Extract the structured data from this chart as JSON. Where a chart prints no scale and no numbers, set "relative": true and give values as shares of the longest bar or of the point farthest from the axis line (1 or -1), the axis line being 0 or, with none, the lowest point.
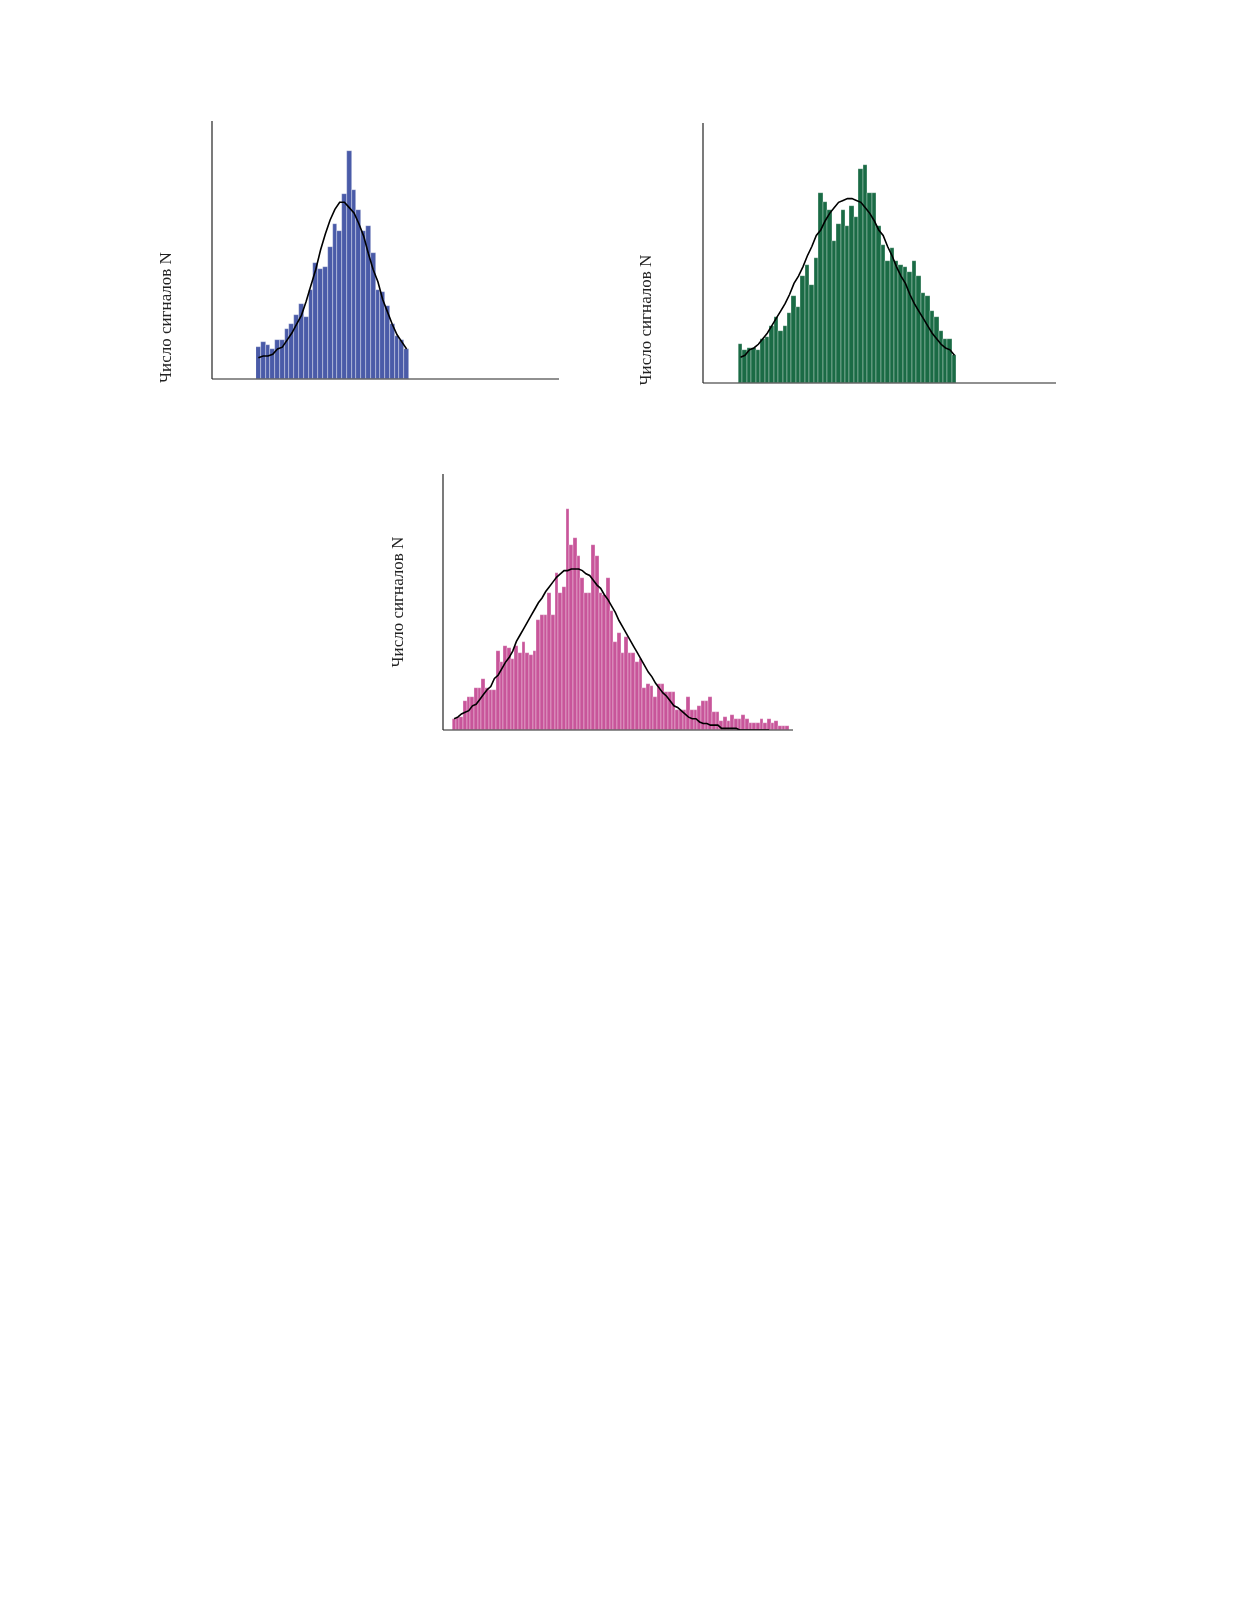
{
  "chart_data": [
    {
      "type": "bar",
      "relative": true,
      "ylabel": "Число сигналов N",
      "categories": [
        null,
        null,
        null,
        null,
        null,
        null,
        null,
        null,
        null,
        null,
        null,
        null,
        null,
        null,
        null,
        null,
        null,
        null,
        null,
        null,
        null,
        null,
        null,
        null,
        null,
        null,
        null,
        null,
        null,
        null,
        null,
        null
      ],
      "series": [
        {
          "color": "#4a5ba8",
          "values": [
            0.14,
            0.16,
            0.15,
            0.13,
            0.17,
            0.17,
            0.22,
            0.24,
            0.28,
            0.33,
            0.27,
            0.39,
            0.51,
            0.48,
            0.49,
            0.58,
            0.68,
            0.65,
            0.81,
            1,
            0.83,
            0.74,
            0.65,
            0.67,
            0.55,
            0.39,
            0.38,
            0.32,
            0.24,
            0.19,
            0.17,
            0.13
          ]
        }
      ]
    },
    {
      "type": "line",
      "relative": true,
      "categories": [
        null,
        null,
        null,
        null,
        null,
        null,
        null,
        null,
        null,
        null,
        null,
        null,
        null,
        null,
        null,
        null,
        null,
        null,
        null,
        null,
        null,
        null,
        null,
        null,
        null,
        null,
        null,
        null,
        null,
        null,
        null,
        null
      ],
      "series": [
        {
          "color": "#000000",
          "values": [
            0.12,
            0.13,
            0.13,
            0.14,
            0.17,
            0.18,
            0.22,
            0.26,
            0.31,
            0.36,
            0.44,
            0.53,
            0.62,
            0.73,
            0.82,
            0.9,
            0.96,
            1,
            1,
            0.97,
            0.94,
            0.88,
            0.81,
            0.71,
            0.62,
            0.55,
            0.45,
            0.38,
            0.31,
            0.25,
            0.21,
            0.17
          ]
        }
      ]
    },
    {
      "type": "bar",
      "relative": true,
      "ylabel": "Число сигналов N",
      "categories": [
        null,
        null,
        null,
        null,
        null,
        null,
        null,
        null,
        null,
        null,
        null,
        null,
        null,
        null,
        null,
        null,
        null,
        null,
        null,
        null,
        null,
        null,
        null,
        null,
        null,
        null,
        null,
        null,
        null,
        null,
        null,
        null,
        null,
        null,
        null,
        null,
        null,
        null,
        null,
        null,
        null,
        null,
        null,
        null,
        null,
        null,
        null,
        null,
        null
      ],
      "series": [
        {
          "color": "#1a6b45",
          "values": [
            0.18,
            0.15,
            0.16,
            0.16,
            0.15,
            0.2,
            0.21,
            0.26,
            0.3,
            0.24,
            0.26,
            0.32,
            0.4,
            0.35,
            0.49,
            0.54,
            0.45,
            0.57,
            0.87,
            0.83,
            0.79,
            0.65,
            0.73,
            0.79,
            0.72,
            0.81,
            0.76,
            0.98,
            1,
            0.87,
            0.87,
            0.72,
            0.63,
            0.56,
            0.62,
            0.56,
            0.54,
            0.53,
            0.51,
            0.56,
            0.49,
            0.41,
            0.4,
            0.33,
            0.3,
            0.24,
            0.2,
            0.2,
            0.13
          ]
        }
      ]
    },
    {
      "type": "line",
      "relative": true,
      "categories": [
        null,
        null,
        null,
        null,
        null,
        null,
        null,
        null,
        null,
        null,
        null,
        null,
        null,
        null,
        null,
        null,
        null,
        null,
        null,
        null,
        null,
        null,
        null,
        null,
        null,
        null,
        null,
        null,
        null,
        null,
        null,
        null,
        null,
        null,
        null,
        null,
        null,
        null,
        null,
        null,
        null,
        null,
        null,
        null,
        null,
        null,
        null,
        null,
        null
      ],
      "series": [
        {
          "color": "#000000",
          "values": [
            0.14,
            0.15,
            0.18,
            0.19,
            0.21,
            0.24,
            0.27,
            0.31,
            0.35,
            0.39,
            0.43,
            0.48,
            0.54,
            0.58,
            0.63,
            0.69,
            0.74,
            0.8,
            0.83,
            0.88,
            0.92,
            0.95,
            0.98,
            0.99,
            1,
            1,
            0.99,
            0.98,
            0.95,
            0.92,
            0.88,
            0.83,
            0.8,
            0.74,
            0.69,
            0.63,
            0.58,
            0.54,
            0.48,
            0.43,
            0.39,
            0.35,
            0.31,
            0.27,
            0.24,
            0.21,
            0.19,
            0.18,
            0.15
          ]
        }
      ]
    },
    {
      "type": "bar",
      "relative": true,
      "ylabel": "Число сигналов N",
      "categories": [
        null,
        null,
        null,
        null,
        null,
        null,
        null,
        null,
        null,
        null,
        null,
        null,
        null,
        null,
        null,
        null,
        null,
        null,
        null,
        null,
        null,
        null,
        null,
        null,
        null,
        null,
        null,
        null,
        null,
        null,
        null,
        null,
        null,
        null,
        null,
        null,
        null,
        null,
        null,
        null,
        null,
        null,
        null,
        null,
        null,
        null,
        null,
        null,
        null,
        null,
        null,
        null,
        null,
        null,
        null,
        null,
        null,
        null,
        null,
        null,
        null,
        null,
        null,
        null,
        null,
        null,
        null,
        null,
        null,
        null,
        null,
        null,
        null,
        null,
        null,
        null,
        null,
        null,
        null,
        null,
        null,
        null,
        null,
        null,
        null,
        null,
        null,
        null,
        null,
        null,
        null,
        null
      ],
      "series": [
        {
          "color": "#c8559a",
          "values": [
            0.05,
            0.06,
            0.06,
            0.13,
            0.15,
            0.15,
            0.19,
            0.19,
            0.23,
            0.19,
            0.18,
            0.18,
            0.36,
            0.31,
            0.38,
            0.37,
            0.32,
            0.38,
            0.35,
            0.4,
            0.35,
            0.34,
            0.36,
            0.5,
            0.52,
            0.52,
            0.62,
            0.52,
            0.71,
            0.62,
            0.65,
            1,
            0.84,
            0.87,
            0.79,
            0.69,
            0.62,
            0.62,
            0.84,
            0.79,
            0.62,
            0.61,
            0.69,
            0.54,
            0.4,
            0.44,
            0.35,
            0.42,
            0.35,
            0.35,
            0.31,
            0.32,
            0.19,
            0.21,
            0.2,
            0.15,
            0.21,
            0.21,
            0.17,
            0.17,
            0.17,
            0.09,
            0.09,
            0.09,
            0.15,
            0.09,
            0.09,
            0.11,
            0.13,
            0.13,
            0.15,
            0.08,
            0.08,
            0.04,
            0.06,
            0.04,
            0.07,
            0.05,
            0.05,
            0.07,
            0.05,
            0.03,
            0.03,
            0.03,
            0.05,
            0.03,
            0.05,
            0.03,
            0.04,
            0.02,
            0.02,
            0.02
          ]
        }
      ]
    },
    {
      "type": "line",
      "relative": true,
      "categories": [
        null,
        null,
        null,
        null,
        null,
        null,
        null,
        null,
        null,
        null,
        null,
        null,
        null,
        null,
        null,
        null,
        null,
        null,
        null,
        null,
        null,
        null,
        null,
        null,
        null,
        null,
        null,
        null,
        null,
        null,
        null,
        null,
        null,
        null,
        null,
        null,
        null,
        null,
        null,
        null,
        null,
        null,
        null,
        null,
        null,
        null,
        null,
        null,
        null,
        null,
        null,
        null,
        null,
        null,
        null,
        null,
        null,
        null,
        null,
        null,
        null,
        null,
        null,
        null,
        null,
        null,
        null,
        null,
        null,
        null,
        null,
        null,
        null,
        null,
        null,
        null,
        null,
        null,
        null,
        null,
        null,
        null,
        null,
        null,
        null,
        null,
        null
      ],
      "series": [
        {
          "color": "#000000",
          "values": [
            0.07,
            0.08,
            0.1,
            0.11,
            0.12,
            0.15,
            0.16,
            0.19,
            0.22,
            0.25,
            0.27,
            0.32,
            0.34,
            0.38,
            0.42,
            0.45,
            0.49,
            0.55,
            0.59,
            0.63,
            0.67,
            0.71,
            0.75,
            0.79,
            0.82,
            0.86,
            0.89,
            0.92,
            0.95,
            0.97,
            0.99,
            0.99,
            1,
            1,
            1,
            0.99,
            0.97,
            0.96,
            0.93,
            0.9,
            0.88,
            0.84,
            0.81,
            0.77,
            0.73,
            0.68,
            0.64,
            0.6,
            0.56,
            0.52,
            0.48,
            0.44,
            0.4,
            0.36,
            0.33,
            0.29,
            0.26,
            0.23,
            0.21,
            0.18,
            0.15,
            0.14,
            0.12,
            0.1,
            0.08,
            0.07,
            0.07,
            0.05,
            0.04,
            0.04,
            0.03,
            0.03,
            0.03,
            0.01,
            0.01,
            0.01,
            0.01,
            0.01,
            0,
            0,
            0,
            0,
            0,
            0,
            0,
            0,
            0
          ]
        }
      ]
    }
  ]
}
